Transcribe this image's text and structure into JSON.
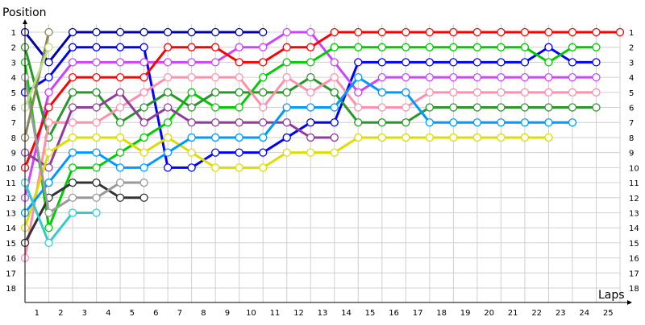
{
  "chart_data": {
    "type": "line",
    "title": "",
    "ylabel": "Position",
    "xlabel": "Laps",
    "x_tick_labels": [
      "1",
      "2",
      "3",
      "4",
      "5",
      "6",
      "7",
      "8",
      "9",
      "10",
      "11",
      "12",
      "13",
      "14",
      "15",
      "16",
      "17",
      "18",
      "19",
      "20",
      "21",
      "22",
      "23",
      "24",
      "25"
    ],
    "y_tick_labels": [
      "1",
      "2",
      "3",
      "4",
      "5",
      "6",
      "7",
      "8",
      "9",
      "10",
      "11",
      "12",
      "13",
      "14",
      "15",
      "16",
      "17",
      "18"
    ],
    "xlim": [
      0,
      25
    ],
    "ylim": [
      1,
      18
    ],
    "y_inverted": true,
    "grid": true,
    "x_values_note_free": true,
    "series": [
      {
        "color": "#0000a8",
        "positions": [
          1,
          3,
          1,
          1,
          1,
          1,
          1,
          1,
          1,
          1,
          1
        ]
      },
      {
        "color": "#0000ff",
        "positions": [
          5,
          4,
          2,
          2,
          2,
          2,
          10,
          10,
          9,
          9,
          9,
          8,
          7,
          7,
          3,
          3,
          3,
          3,
          3,
          3,
          3,
          3,
          2,
          3,
          3
        ]
      },
      {
        "color": "#cc44ff",
        "positions": [
          12,
          5,
          3,
          3,
          3,
          3,
          3,
          3,
          3,
          2,
          2,
          1,
          1,
          3,
          5,
          4,
          4,
          4,
          4,
          4,
          4,
          4,
          4,
          4,
          4
        ]
      },
      {
        "color": "#ff0000",
        "positions": [
          10,
          6,
          4,
          4,
          4,
          4,
          2,
          2,
          2,
          3,
          3,
          2,
          2,
          1,
          1,
          1,
          1,
          1,
          1,
          1,
          1,
          1,
          1,
          1,
          1,
          1
        ]
      },
      {
        "color": "#00cc00",
        "positions": [
          3,
          14,
          10,
          10,
          9,
          8,
          7,
          5,
          6,
          6,
          4,
          3,
          3,
          2,
          2,
          2,
          2,
          2,
          2,
          2,
          2,
          2,
          3,
          2,
          2
        ]
      },
      {
        "color": "#2a962a",
        "positions": [
          2,
          8,
          5,
          5,
          7,
          6,
          5,
          6,
          5,
          5,
          5,
          5,
          4,
          5,
          7,
          7,
          7,
          6,
          6,
          6,
          6,
          6,
          6,
          6,
          6
        ]
      },
      {
        "color": "#ff8fab",
        "positions": [
          16,
          7,
          7,
          7,
          6,
          5,
          4,
          4,
          4,
          4,
          6,
          4,
          5,
          4,
          6,
          6,
          6,
          5,
          5,
          5,
          5,
          5,
          5,
          5,
          5
        ]
      },
      {
        "color": "#903c9c",
        "positions": [
          9,
          10,
          6,
          6,
          5,
          7,
          6,
          7,
          7,
          7,
          7,
          7,
          8,
          8
        ]
      },
      {
        "color": "#dddd00",
        "positions": [
          14,
          9,
          8,
          8,
          8,
          9,
          8,
          9,
          10,
          10,
          10,
          9,
          9,
          9,
          8,
          8,
          8,
          8,
          8,
          8,
          8,
          8,
          8
        ]
      },
      {
        "color": "#0099ff",
        "positions": [
          13,
          11,
          9,
          9,
          10,
          10,
          9,
          8,
          8,
          8,
          8,
          6,
          6,
          6,
          4,
          5,
          5,
          7,
          7,
          7,
          7,
          7,
          7,
          7
        ]
      },
      {
        "color": "#333333",
        "positions": [
          15,
          12,
          11,
          11,
          12,
          12
        ]
      },
      {
        "color": "#999999",
        "positions": [
          4,
          13,
          12,
          12,
          11,
          11
        ]
      },
      {
        "color": "#33cccc",
        "positions": [
          11,
          15,
          13,
          13
        ]
      },
      {
        "color": "#888855",
        "positions": [
          8,
          1
        ]
      },
      {
        "color": "#bbdd88",
        "positions": [
          6,
          2
        ]
      }
    ]
  }
}
